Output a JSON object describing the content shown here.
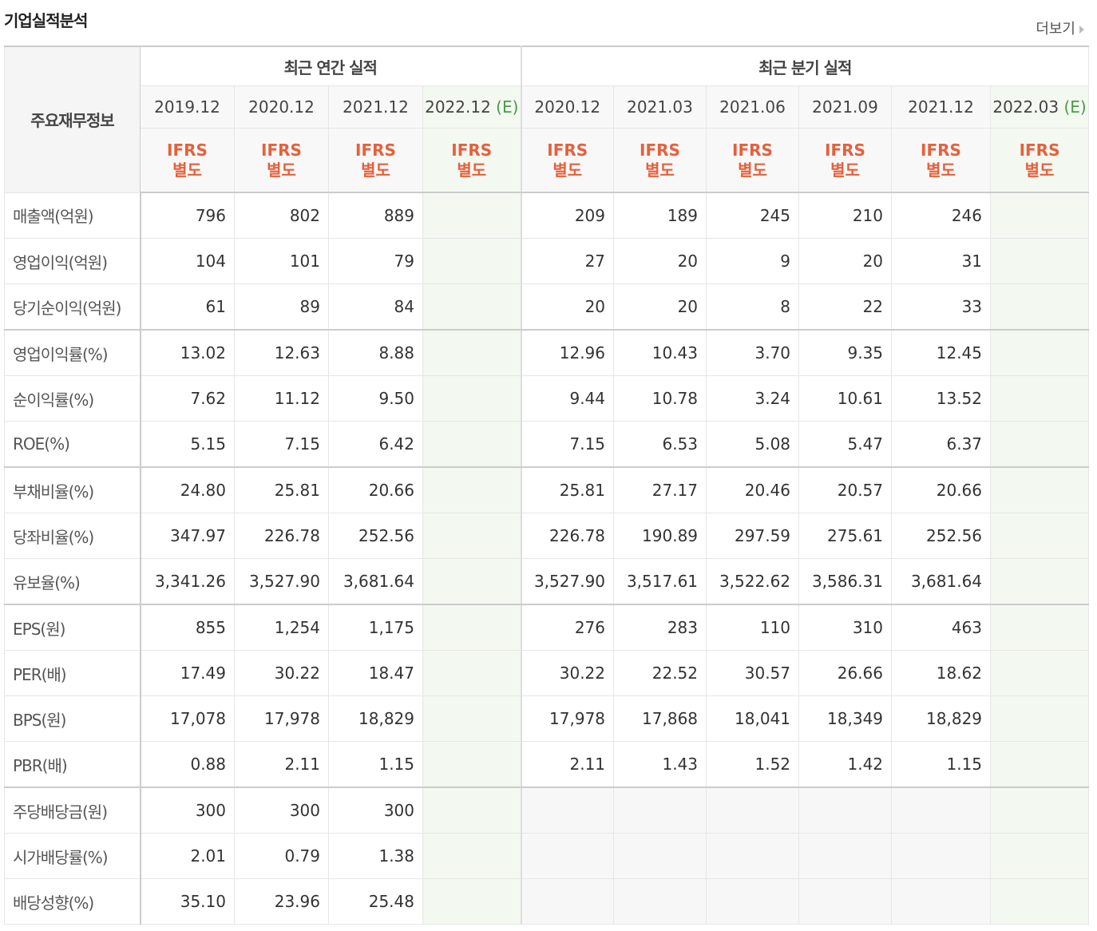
{
  "header": {
    "title": "기업실적분석",
    "more": "더보기"
  },
  "table": {
    "corner": "주요재무정보",
    "groups": [
      {
        "label": "최근 연간 실적",
        "columns": [
          {
            "date": "2019.12",
            "basis": "IFRS",
            "scope": "별도"
          },
          {
            "date": "2020.12",
            "basis": "IFRS",
            "scope": "별도"
          },
          {
            "date": "2021.12",
            "basis": "IFRS",
            "scope": "별도"
          },
          {
            "date": "2022.12",
            "estimate": "(E)",
            "basis": "IFRS",
            "scope": "별도"
          }
        ]
      },
      {
        "label": "최근 분기 실적",
        "columns": [
          {
            "date": "2020.12",
            "basis": "IFRS",
            "scope": "별도"
          },
          {
            "date": "2021.03",
            "basis": "IFRS",
            "scope": "별도"
          },
          {
            "date": "2021.06",
            "basis": "IFRS",
            "scope": "별도"
          },
          {
            "date": "2021.09",
            "basis": "IFRS",
            "scope": "별도"
          },
          {
            "date": "2021.12",
            "basis": "IFRS",
            "scope": "별도"
          },
          {
            "date": "2022.03",
            "estimate": "(E)",
            "basis": "IFRS",
            "scope": "별도"
          }
        ]
      }
    ],
    "rows": [
      {
        "label": "매출액(억원)",
        "values": [
          "796",
          "802",
          "889",
          null,
          "209",
          "189",
          "245",
          "210",
          "246",
          null
        ]
      },
      {
        "label": "영업이익(억원)",
        "values": [
          "104",
          "101",
          "79",
          null,
          "27",
          "20",
          "9",
          "20",
          "31",
          null
        ]
      },
      {
        "label": "당기순이익(억원)",
        "values": [
          "61",
          "89",
          "84",
          null,
          "20",
          "20",
          "8",
          "22",
          "33",
          null
        ]
      },
      {
        "label": "영업이익률(%)",
        "values": [
          "13.02",
          "12.63",
          "8.88",
          null,
          "12.96",
          "10.43",
          "3.70",
          "9.35",
          "12.45",
          null
        ]
      },
      {
        "label": "순이익률(%)",
        "values": [
          "7.62",
          "11.12",
          "9.50",
          null,
          "9.44",
          "10.78",
          "3.24",
          "10.61",
          "13.52",
          null
        ]
      },
      {
        "label": "ROE(%)",
        "values": [
          "5.15",
          "7.15",
          "6.42",
          null,
          "7.15",
          "6.53",
          "5.08",
          "5.47",
          "6.37",
          null
        ]
      },
      {
        "label": "부채비율(%)",
        "values": [
          "24.80",
          "25.81",
          "20.66",
          null,
          "25.81",
          "27.17",
          "20.46",
          "20.57",
          "20.66",
          null
        ]
      },
      {
        "label": "당좌비율(%)",
        "values": [
          "347.97",
          "226.78",
          "252.56",
          null,
          "226.78",
          "190.89",
          "297.59",
          "275.61",
          "252.56",
          null
        ]
      },
      {
        "label": "유보율(%)",
        "values": [
          "3,341.26",
          "3,527.90",
          "3,681.64",
          null,
          "3,527.90",
          "3,517.61",
          "3,522.62",
          "3,586.31",
          "3,681.64",
          null
        ]
      },
      {
        "label": "EPS(원)",
        "values": [
          "855",
          "1,254",
          "1,175",
          null,
          "276",
          "283",
          "110",
          "310",
          "463",
          null
        ]
      },
      {
        "label": "PER(배)",
        "values": [
          "17.49",
          "30.22",
          "18.47",
          null,
          "30.22",
          "22.52",
          "30.57",
          "26.66",
          "18.62",
          null
        ]
      },
      {
        "label": "BPS(원)",
        "values": [
          "17,078",
          "17,978",
          "18,829",
          null,
          "17,978",
          "17,868",
          "18,041",
          "18,349",
          "18,829",
          null
        ]
      },
      {
        "label": "PBR(배)",
        "values": [
          "0.88",
          "2.11",
          "1.15",
          null,
          "2.11",
          "1.43",
          "1.52",
          "1.42",
          "1.15",
          null
        ]
      },
      {
        "label": "주당배당금(원)",
        "values": [
          "300",
          "300",
          "300",
          null,
          null,
          null,
          null,
          null,
          null,
          null
        ]
      },
      {
        "label": "시가배당률(%)",
        "values": [
          "2.01",
          "0.79",
          "1.38",
          null,
          null,
          null,
          null,
          null,
          null,
          null
        ]
      },
      {
        "label": "배당성향(%)",
        "values": [
          "35.10",
          "23.96",
          "25.48",
          null,
          null,
          null,
          null,
          null,
          null,
          null
        ]
      }
    ]
  }
}
